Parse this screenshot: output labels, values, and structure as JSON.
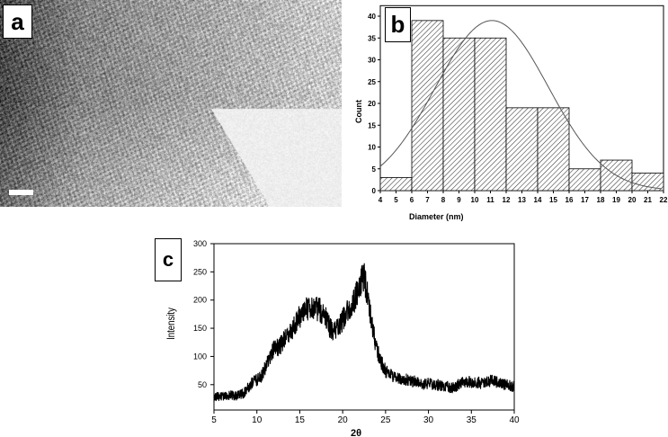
{
  "panels": {
    "a": {
      "label": "a",
      "description_mark": "micrograph"
    },
    "b": {
      "label": "b"
    },
    "c": {
      "label": "c"
    }
  },
  "chart_data": [
    {
      "type": "bar",
      "panel": "b",
      "xlabel": "Diameter (nm)",
      "ylabel": "Count",
      "xlim": [
        4,
        22
      ],
      "ylim": [
        0,
        42
      ],
      "xticks": [
        4,
        5,
        6,
        7,
        8,
        9,
        10,
        11,
        12,
        13,
        14,
        15,
        16,
        17,
        18,
        19,
        20,
        21,
        22
      ],
      "yticks": [
        0,
        5,
        10,
        15,
        20,
        25,
        30,
        35,
        40
      ],
      "bins": [
        [
          4,
          6
        ],
        [
          6,
          8
        ],
        [
          8,
          10
        ],
        [
          10,
          12
        ],
        [
          12,
          14
        ],
        [
          14,
          16
        ],
        [
          16,
          18
        ],
        [
          18,
          20
        ],
        [
          20,
          22
        ]
      ],
      "values": [
        3,
        39,
        35,
        35,
        19,
        19,
        5,
        7,
        4
      ],
      "fit": {
        "type": "gaussian",
        "peak": 39,
        "center": 11.1,
        "sigma": 3.6
      },
      "fill": "diagonal-hatch"
    },
    {
      "type": "line",
      "panel": "c",
      "xlabel": "2θ",
      "ylabel": "Intensity",
      "xlim": [
        5,
        40
      ],
      "ylim": [
        5,
        300
      ],
      "xticks": [
        5,
        10,
        15,
        20,
        25,
        30,
        35,
        40
      ],
      "yticks": [
        50,
        100,
        150,
        200,
        250,
        300
      ],
      "color": "#000000",
      "points": [
        [
          5,
          25
        ],
        [
          5.5,
          30
        ],
        [
          6,
          28
        ],
        [
          6.5,
          30
        ],
        [
          7,
          32
        ],
        [
          7.5,
          30
        ],
        [
          8,
          32
        ],
        [
          8.5,
          35
        ],
        [
          9,
          45
        ],
        [
          9.5,
          55
        ],
        [
          10,
          58
        ],
        [
          10.5,
          65
        ],
        [
          11,
          80
        ],
        [
          11.5,
          100
        ],
        [
          12,
          115
        ],
        [
          12.5,
          115
        ],
        [
          13,
          125
        ],
        [
          13.5,
          135
        ],
        [
          14,
          145
        ],
        [
          14.5,
          160
        ],
        [
          15,
          170
        ],
        [
          15.5,
          180
        ],
        [
          16,
          185
        ],
        [
          16.5,
          185
        ],
        [
          17,
          185
        ],
        [
          17.5,
          180
        ],
        [
          18,
          170
        ],
        [
          18.5,
          150
        ],
        [
          19,
          145
        ],
        [
          19.5,
          150
        ],
        [
          20,
          165
        ],
        [
          20.5,
          180
        ],
        [
          21,
          190
        ],
        [
          21.5,
          205
        ],
        [
          22,
          230
        ],
        [
          22.5,
          240
        ],
        [
          23,
          200
        ],
        [
          23.5,
          150
        ],
        [
          24,
          110
        ],
        [
          24.5,
          90
        ],
        [
          25,
          75
        ],
        [
          25.5,
          70
        ],
        [
          26,
          65
        ],
        [
          26.5,
          62
        ],
        [
          27,
          60
        ],
        [
          27.5,
          58
        ],
        [
          28,
          56
        ],
        [
          28.5,
          55
        ],
        [
          29,
          54
        ],
        [
          29.5,
          52
        ],
        [
          30,
          52
        ],
        [
          30.5,
          50
        ],
        [
          31,
          50
        ],
        [
          31.5,
          48
        ],
        [
          32,
          48
        ],
        [
          32.5,
          45
        ],
        [
          33,
          45
        ],
        [
          33.5,
          50
        ],
        [
          34,
          55
        ],
        [
          34.5,
          55
        ],
        [
          35,
          55
        ],
        [
          35.5,
          55
        ],
        [
          36,
          52
        ],
        [
          36.5,
          52
        ],
        [
          37,
          55
        ],
        [
          37.5,
          58
        ],
        [
          38,
          55
        ],
        [
          38.5,
          50
        ],
        [
          39,
          50
        ],
        [
          39.5,
          48
        ],
        [
          40,
          47
        ]
      ]
    }
  ]
}
